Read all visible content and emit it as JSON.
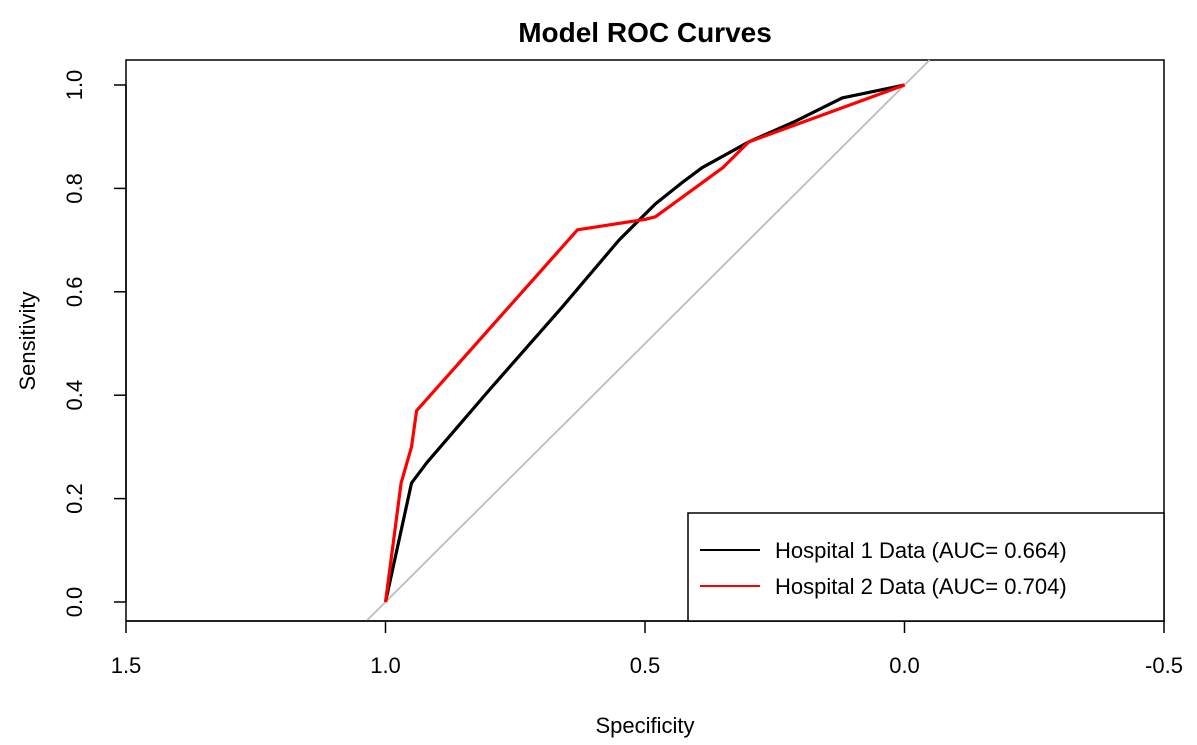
{
  "chart_data": {
    "type": "line",
    "title": "Model ROC Curves",
    "xlabel": "Specificity",
    "ylabel": "Sensitivity",
    "xlim": [
      1.5,
      -0.5
    ],
    "ylim": [
      0.0,
      1.0
    ],
    "x_reversed": true,
    "xticks": [
      "1.5",
      "1.0",
      "0.5",
      "0.0",
      "-0.5"
    ],
    "yticks": [
      "0.0",
      "0.2",
      "0.4",
      "0.6",
      "0.8",
      "1.0"
    ],
    "grid": false,
    "legend_position": "bottom-right",
    "reference_line": {
      "from": [
        1.0,
        0.0
      ],
      "to": [
        0.0,
        1.0
      ],
      "color": "#bdbdbd"
    },
    "series": [
      {
        "name": "Hospital 1 Data (AUC= 0.664)",
        "color": "#000000",
        "x": [
          1.0,
          0.95,
          0.92,
          0.86,
          0.8,
          0.73,
          0.66,
          0.55,
          0.48,
          0.43,
          0.39,
          0.3,
          0.21,
          0.12,
          0.0
        ],
        "y": [
          0.0,
          0.23,
          0.27,
          0.34,
          0.41,
          0.49,
          0.57,
          0.7,
          0.77,
          0.81,
          0.84,
          0.89,
          0.93,
          0.975,
          1.0
        ]
      },
      {
        "name": "Hospital 2 Data (AUC= 0.704)",
        "color": "#ff0000",
        "x": [
          1.0,
          0.97,
          0.95,
          0.94,
          0.63,
          0.5,
          0.48,
          0.35,
          0.3,
          0.0
        ],
        "y": [
          0.0,
          0.23,
          0.3,
          0.37,
          0.72,
          0.74,
          0.745,
          0.84,
          0.89,
          1.0
        ]
      }
    ]
  }
}
